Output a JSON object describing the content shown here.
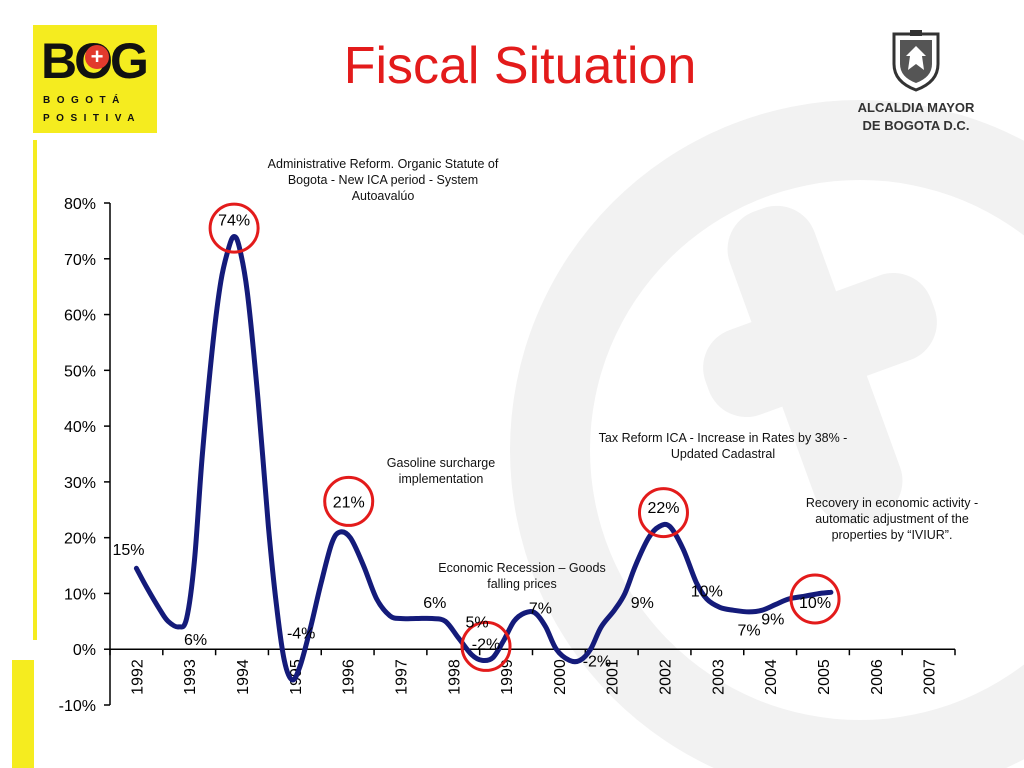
{
  "header": {
    "title": "Fiscal Situation",
    "logo_left_main": "BOG",
    "logo_left_sub1": "BOGOTÁ",
    "logo_left_sub2": "POSITIVA",
    "logo_right_line1": "ALCALDIA MAYOR",
    "logo_right_line2": "DE BOGOTA D.C."
  },
  "colors": {
    "line": "#141b7a",
    "circle": "#e31b1b",
    "title": "#e31b1b",
    "brand_yellow": "#f5ec1f"
  },
  "chart_data": {
    "type": "line",
    "x": [
      "1992",
      "1993",
      "1994",
      "1995",
      "1996",
      "1997",
      "1998",
      "1999",
      "2000",
      "2001",
      "2002",
      "2003",
      "2004",
      "2005",
      "2006",
      "2007"
    ],
    "ylim": [
      -0.1,
      0.8
    ],
    "yticks": [
      "-10%",
      "0%",
      "10%",
      "20%",
      "30%",
      "40%",
      "50%",
      "60%",
      "70%",
      "80%"
    ],
    "series": [
      {
        "points": [
          [
            1992.0,
            0.145
          ],
          [
            1992.2,
            0.11
          ],
          [
            1992.45,
            0.07
          ],
          [
            1992.6,
            0.05
          ],
          [
            1992.8,
            0.04
          ],
          [
            1992.95,
            0.055
          ],
          [
            1993.1,
            0.16
          ],
          [
            1993.25,
            0.35
          ],
          [
            1993.45,
            0.55
          ],
          [
            1993.6,
            0.66
          ],
          [
            1993.75,
            0.72
          ],
          [
            1993.85,
            0.74
          ],
          [
            1993.95,
            0.72
          ],
          [
            1994.1,
            0.64
          ],
          [
            1994.3,
            0.45
          ],
          [
            1994.5,
            0.22
          ],
          [
            1994.65,
            0.08
          ],
          [
            1994.8,
            -0.02
          ],
          [
            1994.95,
            -0.055
          ],
          [
            1995.1,
            -0.03
          ],
          [
            1995.3,
            0.04
          ],
          [
            1995.5,
            0.12
          ],
          [
            1995.7,
            0.19
          ],
          [
            1995.85,
            0.21
          ],
          [
            1996.05,
            0.2
          ],
          [
            1996.3,
            0.15
          ],
          [
            1996.55,
            0.09
          ],
          [
            1996.8,
            0.06
          ],
          [
            1997.0,
            0.055
          ],
          [
            1997.3,
            0.055
          ],
          [
            1997.6,
            0.055
          ],
          [
            1997.85,
            0.05
          ],
          [
            1998.1,
            0.02
          ],
          [
            1998.35,
            -0.01
          ],
          [
            1998.55,
            -0.02
          ],
          [
            1998.75,
            -0.015
          ],
          [
            1998.95,
            0.015
          ],
          [
            1999.15,
            0.05
          ],
          [
            1999.35,
            0.065
          ],
          [
            1999.55,
            0.065
          ],
          [
            1999.75,
            0.04
          ],
          [
            1999.95,
            0.0
          ],
          [
            2000.2,
            -0.02
          ],
          [
            2000.4,
            -0.02
          ],
          [
            2000.6,
            0.0
          ],
          [
            2000.8,
            0.04
          ],
          [
            2001.05,
            0.07
          ],
          [
            2001.25,
            0.1
          ],
          [
            2001.45,
            0.15
          ],
          [
            2001.7,
            0.2
          ],
          [
            2001.9,
            0.22
          ],
          [
            2002.1,
            0.22
          ],
          [
            2002.35,
            0.18
          ],
          [
            2002.6,
            0.12
          ],
          [
            2002.8,
            0.09
          ],
          [
            2003.05,
            0.075
          ],
          [
            2003.3,
            0.07
          ],
          [
            2003.6,
            0.067
          ],
          [
            2003.85,
            0.07
          ],
          [
            2004.1,
            0.08
          ],
          [
            2004.35,
            0.09
          ],
          [
            2004.65,
            0.095
          ],
          [
            2004.95,
            0.1
          ],
          [
            2005.15,
            0.102
          ]
        ]
      }
    ],
    "data_labels": [
      {
        "text": "15%",
        "x": 1991.85,
        "y": 0.18
      },
      {
        "text": "6%",
        "x": 1993.12,
        "y": 0.018
      },
      {
        "text": "74%",
        "x": 1993.85,
        "y": 0.77
      },
      {
        "text": "-4%",
        "x": 1995.12,
        "y": 0.03
      },
      {
        "text": "21%",
        "x": 1996.02,
        "y": 0.265
      },
      {
        "text": "6%",
        "x": 1997.65,
        "y": 0.085
      },
      {
        "text": "5%",
        "x": 1998.45,
        "y": 0.05
      },
      {
        "text": "-2%",
        "x": 1998.62,
        "y": 0.01
      },
      {
        "text": "7%",
        "x": 1999.65,
        "y": 0.075
      },
      {
        "text": "-2%",
        "x": 2000.72,
        "y": -0.02
      },
      {
        "text": "9%",
        "x": 2001.58,
        "y": 0.085
      },
      {
        "text": "22%",
        "x": 2001.98,
        "y": 0.255
      },
      {
        "text": "10%",
        "x": 2002.8,
        "y": 0.105
      },
      {
        "text": "7%",
        "x": 2003.6,
        "y": 0.035
      },
      {
        "text": "9%",
        "x": 2004.05,
        "y": 0.055
      },
      {
        "text": "10%",
        "x": 2004.85,
        "y": 0.085
      }
    ],
    "highlight_circles": [
      {
        "x": 1993.85,
        "y": 0.755
      },
      {
        "x": 1996.02,
        "y": 0.265
      },
      {
        "x": 1998.62,
        "y": 0.005
      },
      {
        "x": 2001.98,
        "y": 0.245
      },
      {
        "x": 2004.85,
        "y": 0.09
      }
    ],
    "annotations": [
      {
        "text": "Administrative Reform. Organic Statute of Bogota - New ICA period - System Autoavalúo"
      },
      {
        "text": "Gasoline surcharge implementation"
      },
      {
        "text": "Economic Recession – Goods falling prices"
      },
      {
        "text": "Tax Reform ICA - Increase in Rates by 38% - Updated Cadastral"
      },
      {
        "text": "Recovery in economic activity - automatic adjustment of the properties by “IVIUR”."
      }
    ]
  }
}
